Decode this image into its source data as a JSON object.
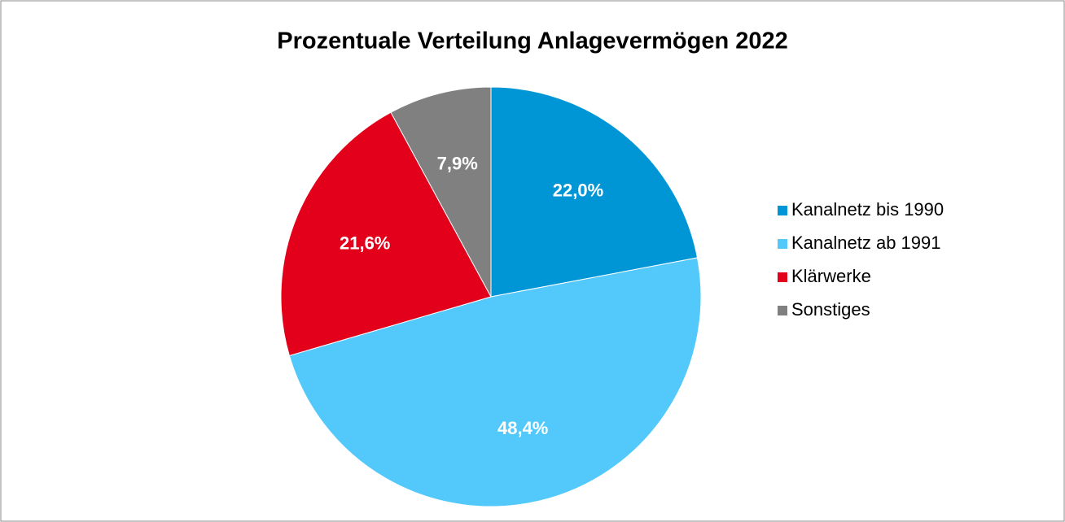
{
  "chart_data": {
    "type": "pie",
    "title": "Prozentuale Verteilung Anlagevermögen 2022",
    "categories": [
      "Kanalnetz bis 1990",
      "Kanalnetz ab 1991",
      "Klärwerke",
      "Sonstiges"
    ],
    "values": [
      22.0,
      48.4,
      21.6,
      7.9
    ],
    "value_labels": [
      "22,0%",
      "48,4%",
      "21,6%",
      "7,9%"
    ],
    "colors": [
      "#0096d6",
      "#52c8fb",
      "#e2001a",
      "#808080"
    ],
    "legend": "right"
  }
}
